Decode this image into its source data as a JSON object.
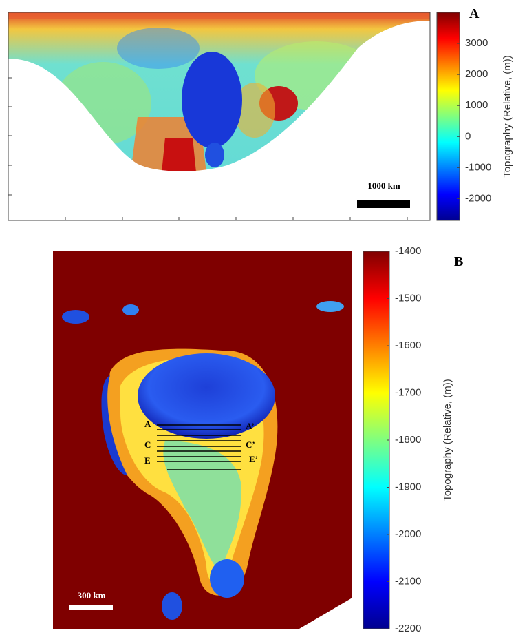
{
  "panels": [
    {
      "label": "A",
      "colorbar": {
        "title": "Topography (Relative, (m))",
        "lim": [
          -2700,
          4000
        ],
        "ticks": [
          3000,
          2000,
          1000,
          0,
          -1000,
          -2000
        ]
      },
      "scale_bar": "1000 km"
    },
    {
      "label": "B",
      "colorbar": {
        "title": "Topography (Relative, (m))",
        "lim": [
          -2200,
          -1400
        ],
        "ticks": [
          -1400,
          -1500,
          -1600,
          -1700,
          -1800,
          -1900,
          -2000,
          -2100,
          -2200
        ]
      },
      "scale_bar": "300 km",
      "profiles": [
        "A",
        "A’",
        "C",
        "C’",
        "E",
        "E’"
      ]
    }
  ]
}
